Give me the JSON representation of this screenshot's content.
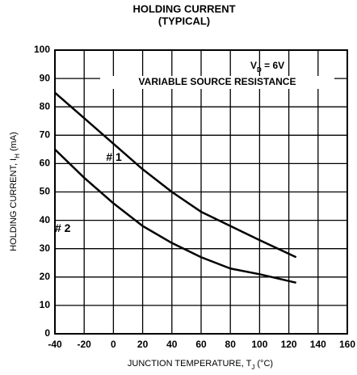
{
  "chart_data": {
    "type": "line",
    "title": [
      "HOLDING CURRENT",
      "(TYPICAL)"
    ],
    "xlabel": {
      "text": "JUNCTION TEMPERATURE, T",
      "sub": "J",
      "rest": " (°C)"
    },
    "ylabel": {
      "text": "HOLDING CURRENT, I",
      "sub": "H",
      "rest": " (mA)"
    },
    "annotations": [
      {
        "text": "V",
        "sub": "D",
        "rest": " = 6V"
      },
      {
        "text": "VARIABLE SOURCE RESISTANCE"
      }
    ],
    "x": [
      -40,
      -20,
      0,
      20,
      40,
      60,
      80,
      100,
      125
    ],
    "series": [
      {
        "name": "# 1",
        "color": "#000000",
        "values": [
          85,
          76,
          67,
          58,
          50,
          43,
          38,
          33,
          27
        ]
      },
      {
        "name": "# 2",
        "color": "#000000",
        "values": [
          65,
          55,
          46,
          38,
          32,
          27,
          23,
          21,
          18
        ]
      }
    ],
    "xlim": [
      -40,
      160
    ],
    "xticks": [
      -40,
      -20,
      0,
      20,
      40,
      60,
      80,
      100,
      120,
      140,
      160
    ],
    "ylim": [
      0,
      100
    ],
    "yticks": [
      0,
      10,
      20,
      30,
      40,
      50,
      60,
      70,
      80,
      90,
      100
    ],
    "grid": true
  }
}
